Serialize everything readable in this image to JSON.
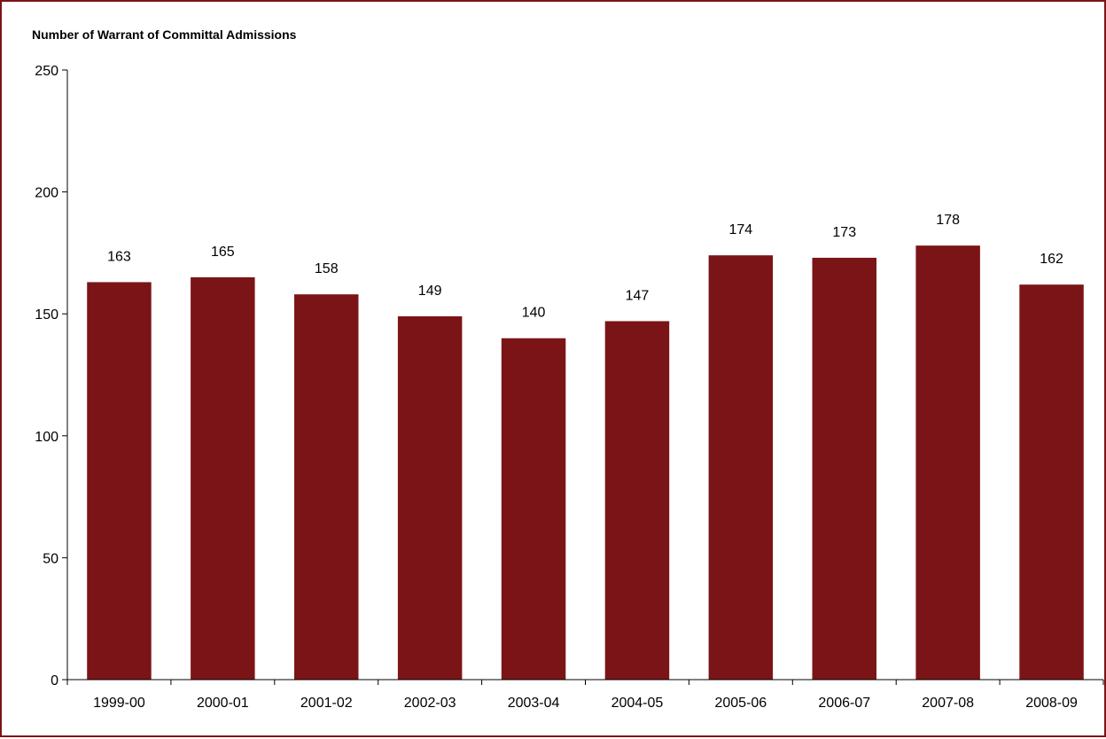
{
  "colors": {
    "bar": "#7b1416",
    "frame": "#7b1416",
    "axis": "#000000"
  },
  "chart_data": {
    "type": "bar",
    "ylabel": "Number of Warrant of Committal Admissions",
    "categories": [
      "1999-00",
      "2000-01",
      "2001-02",
      "2002-03",
      "2003-04",
      "2004-05",
      "2005-06",
      "2006-07",
      "2007-08",
      "2008-09"
    ],
    "values": [
      163,
      165,
      158,
      149,
      140,
      147,
      174,
      173,
      178,
      162
    ],
    "data_labels": [
      "163",
      "165",
      "158",
      "149",
      "140",
      "147",
      "174",
      "173",
      "178",
      "162"
    ],
    "ylim": [
      0,
      250
    ],
    "yticks": [
      0,
      50,
      100,
      150,
      200,
      250
    ],
    "grid": false,
    "legend": "none"
  }
}
